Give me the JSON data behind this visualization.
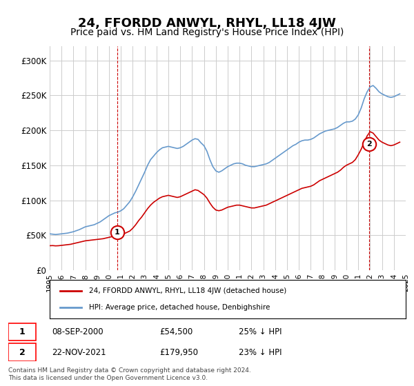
{
  "title": "24, FFORDD ANWYL, RHYL, LL18 4JW",
  "subtitle": "Price paid vs. HM Land Registry's House Price Index (HPI)",
  "title_fontsize": 13,
  "subtitle_fontsize": 10,
  "background_color": "#ffffff",
  "grid_color": "#cccccc",
  "ylim": [
    0,
    320000
  ],
  "yticks": [
    0,
    50000,
    100000,
    150000,
    200000,
    250000,
    300000
  ],
  "ytick_labels": [
    "£0",
    "£50K",
    "£100K",
    "£150K",
    "£200K",
    "£250K",
    "£300K"
  ],
  "x_start_year": 1995,
  "x_end_year": 2025,
  "xtick_years": [
    1995,
    1996,
    1997,
    1998,
    1999,
    2000,
    2001,
    2002,
    2003,
    2004,
    2005,
    2006,
    2007,
    2008,
    2009,
    2010,
    2011,
    2012,
    2013,
    2014,
    2015,
    2016,
    2017,
    2018,
    2019,
    2020,
    2021,
    2022,
    2023,
    2024,
    2025
  ],
  "hpi_color": "#6699cc",
  "price_color": "#cc0000",
  "annotation1_year": 2000.69,
  "annotation1_value": 54500,
  "annotation1_label": "1",
  "annotation2_year": 2021.9,
  "annotation2_value": 179950,
  "annotation2_label": "2",
  "vline1_year": 2000.69,
  "vline2_year": 2021.9,
  "vline_color": "#cc0000",
  "legend_label_price": "24, FFORDD ANWYL, RHYL, LL18 4JW (detached house)",
  "legend_label_hpi": "HPI: Average price, detached house, Denbighshire",
  "table_rows": [
    {
      "num": "1",
      "date": "08-SEP-2000",
      "price": "£54,500",
      "change": "25% ↓ HPI"
    },
    {
      "num": "2",
      "date": "22-NOV-2021",
      "price": "£179,950",
      "change": "23% ↓ HPI"
    }
  ],
  "footer_text": "Contains HM Land Registry data © Crown copyright and database right 2024.\nThis data is licensed under the Open Government Licence v3.0.",
  "hpi_data_x": [
    1995.0,
    1995.25,
    1995.5,
    1995.75,
    1996.0,
    1996.25,
    1996.5,
    1996.75,
    1997.0,
    1997.25,
    1997.5,
    1997.75,
    1998.0,
    1998.25,
    1998.5,
    1998.75,
    1999.0,
    1999.25,
    1999.5,
    1999.75,
    2000.0,
    2000.25,
    2000.5,
    2000.75,
    2001.0,
    2001.25,
    2001.5,
    2001.75,
    2002.0,
    2002.25,
    2002.5,
    2002.75,
    2003.0,
    2003.25,
    2003.5,
    2003.75,
    2004.0,
    2004.25,
    2004.5,
    2004.75,
    2005.0,
    2005.25,
    2005.5,
    2005.75,
    2006.0,
    2006.25,
    2006.5,
    2006.75,
    2007.0,
    2007.25,
    2007.5,
    2007.75,
    2008.0,
    2008.25,
    2008.5,
    2008.75,
    2009.0,
    2009.25,
    2009.5,
    2009.75,
    2010.0,
    2010.25,
    2010.5,
    2010.75,
    2011.0,
    2011.25,
    2011.5,
    2011.75,
    2012.0,
    2012.25,
    2012.5,
    2012.75,
    2013.0,
    2013.25,
    2013.5,
    2013.75,
    2014.0,
    2014.25,
    2014.5,
    2014.75,
    2015.0,
    2015.25,
    2015.5,
    2015.75,
    2016.0,
    2016.25,
    2016.5,
    2016.75,
    2017.0,
    2017.25,
    2017.5,
    2017.75,
    2018.0,
    2018.25,
    2018.5,
    2018.75,
    2019.0,
    2019.25,
    2019.5,
    2019.75,
    2020.0,
    2020.25,
    2020.5,
    2020.75,
    2021.0,
    2021.25,
    2021.5,
    2021.75,
    2022.0,
    2022.25,
    2022.5,
    2022.75,
    2023.0,
    2023.25,
    2023.5,
    2023.75,
    2024.0,
    2024.25,
    2024.5
  ],
  "hpi_data_y": [
    52000,
    51500,
    51000,
    51500,
    52000,
    52500,
    53000,
    54000,
    55000,
    56500,
    58000,
    60000,
    62000,
    63000,
    64000,
    65000,
    67000,
    69000,
    72000,
    75000,
    78000,
    80000,
    82000,
    83000,
    85000,
    88000,
    93000,
    98000,
    105000,
    113000,
    122000,
    131000,
    140000,
    150000,
    158000,
    163000,
    168000,
    172000,
    175000,
    176000,
    177000,
    176000,
    175000,
    174000,
    175000,
    177000,
    180000,
    183000,
    186000,
    188000,
    187000,
    182000,
    178000,
    170000,
    158000,
    148000,
    142000,
    140000,
    142000,
    145000,
    148000,
    150000,
    152000,
    153000,
    153000,
    152000,
    150000,
    149000,
    148000,
    148000,
    149000,
    150000,
    151000,
    152000,
    154000,
    157000,
    160000,
    163000,
    166000,
    169000,
    172000,
    175000,
    178000,
    180000,
    183000,
    185000,
    186000,
    186000,
    187000,
    189000,
    192000,
    195000,
    197000,
    199000,
    200000,
    201000,
    202000,
    204000,
    207000,
    210000,
    212000,
    212000,
    213000,
    216000,
    222000,
    232000,
    245000,
    255000,
    262000,
    264000,
    260000,
    255000,
    252000,
    250000,
    248000,
    247000,
    248000,
    250000,
    252000
  ],
  "price_paid_x": [
    1995.0,
    1995.25,
    1995.5,
    1995.75,
    1996.0,
    1996.25,
    1996.5,
    1996.75,
    1997.0,
    1997.25,
    1997.5,
    1997.75,
    1998.0,
    1998.25,
    1998.5,
    1998.75,
    1999.0,
    1999.25,
    1999.5,
    1999.75,
    2000.0,
    2000.25,
    2000.5,
    2000.75,
    2001.0,
    2001.25,
    2001.5,
    2001.75,
    2002.0,
    2002.25,
    2002.5,
    2002.75,
    2003.0,
    2003.25,
    2003.5,
    2003.75,
    2004.0,
    2004.25,
    2004.5,
    2004.75,
    2005.0,
    2005.25,
    2005.5,
    2005.75,
    2006.0,
    2006.25,
    2006.5,
    2006.75,
    2007.0,
    2007.25,
    2007.5,
    2007.75,
    2008.0,
    2008.25,
    2008.5,
    2008.75,
    2009.0,
    2009.25,
    2009.5,
    2009.75,
    2010.0,
    2010.25,
    2010.5,
    2010.75,
    2011.0,
    2011.25,
    2011.5,
    2011.75,
    2012.0,
    2012.25,
    2012.5,
    2012.75,
    2013.0,
    2013.25,
    2013.5,
    2013.75,
    2014.0,
    2014.25,
    2014.5,
    2014.75,
    2015.0,
    2015.25,
    2015.5,
    2015.75,
    2016.0,
    2016.25,
    2016.5,
    2016.75,
    2017.0,
    2017.25,
    2017.5,
    2017.75,
    2018.0,
    2018.25,
    2018.5,
    2018.75,
    2019.0,
    2019.25,
    2019.5,
    2019.75,
    2020.0,
    2020.25,
    2020.5,
    2020.75,
    2021.0,
    2021.25,
    2021.5,
    2021.75,
    2022.0,
    2022.25,
    2022.5,
    2022.75,
    2023.0,
    2023.25,
    2023.5,
    2023.75,
    2024.0,
    2024.25,
    2024.5
  ],
  "price_paid_y": [
    35000,
    35200,
    34800,
    35000,
    35500,
    36000,
    36500,
    37000,
    38000,
    39000,
    40000,
    41000,
    42000,
    42500,
    43000,
    43500,
    44000,
    44500,
    45000,
    46000,
    47000,
    48000,
    49000,
    50000,
    51000,
    52000,
    54000,
    56000,
    60000,
    65000,
    71000,
    76000,
    82000,
    88000,
    93000,
    97000,
    100000,
    103000,
    105000,
    106000,
    107000,
    106000,
    105000,
    104000,
    105000,
    107000,
    109000,
    111000,
    113000,
    115000,
    114000,
    111000,
    108000,
    103000,
    96000,
    90000,
    86000,
    85000,
    86000,
    88000,
    90000,
    91000,
    92000,
    93000,
    93000,
    92000,
    91000,
    90000,
    89000,
    89000,
    90000,
    91000,
    92000,
    93000,
    95000,
    97000,
    99000,
    101000,
    103000,
    105000,
    107000,
    109000,
    111000,
    113000,
    115000,
    117000,
    118000,
    119000,
    120000,
    122000,
    125000,
    128000,
    130000,
    132000,
    134000,
    136000,
    138000,
    140000,
    143000,
    147000,
    150000,
    152000,
    154000,
    158000,
    165000,
    173000,
    183000,
    192000,
    198000,
    196000,
    191000,
    186000,
    183000,
    181000,
    179000,
    178000,
    179000,
    181000,
    183000
  ]
}
